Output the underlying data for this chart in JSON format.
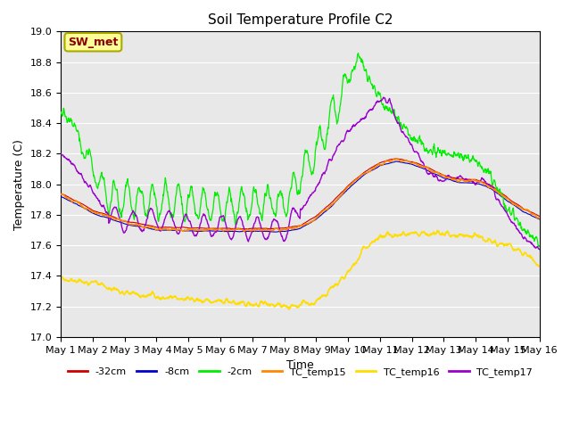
{
  "title": "Soil Temperature Profile C2",
  "xlabel": "Time",
  "ylabel": "Temperature (C)",
  "ylim": [
    17.0,
    19.0
  ],
  "yticks": [
    17.0,
    17.2,
    17.4,
    17.6,
    17.8,
    18.0,
    18.2,
    18.4,
    18.6,
    18.8,
    19.0
  ],
  "x_tick_labels": [
    "May 1",
    "May 2",
    "May 3",
    "May 4",
    "May 5",
    "May 6",
    "May 7",
    "May 8",
    "May 9",
    "May 10",
    "May 11",
    "May 12",
    "May 13",
    "May 14",
    "May 15",
    "May 16"
  ],
  "num_days": 15,
  "points_per_day": 96,
  "colors": {
    "-32cm": "#cc0000",
    "-8cm": "#0000cc",
    "-2cm": "#00ee00",
    "TC_temp15": "#ff8800",
    "TC_temp16": "#ffdd00",
    "TC_temp17": "#9900cc"
  },
  "label_box_text": "SW_met",
  "label_box_facecolor": "#ffff99",
  "label_box_edgecolor": "#aaaa00",
  "label_box_textcolor": "#880000",
  "bg_color": "#e8e8e8",
  "grid_color": "#ffffff"
}
